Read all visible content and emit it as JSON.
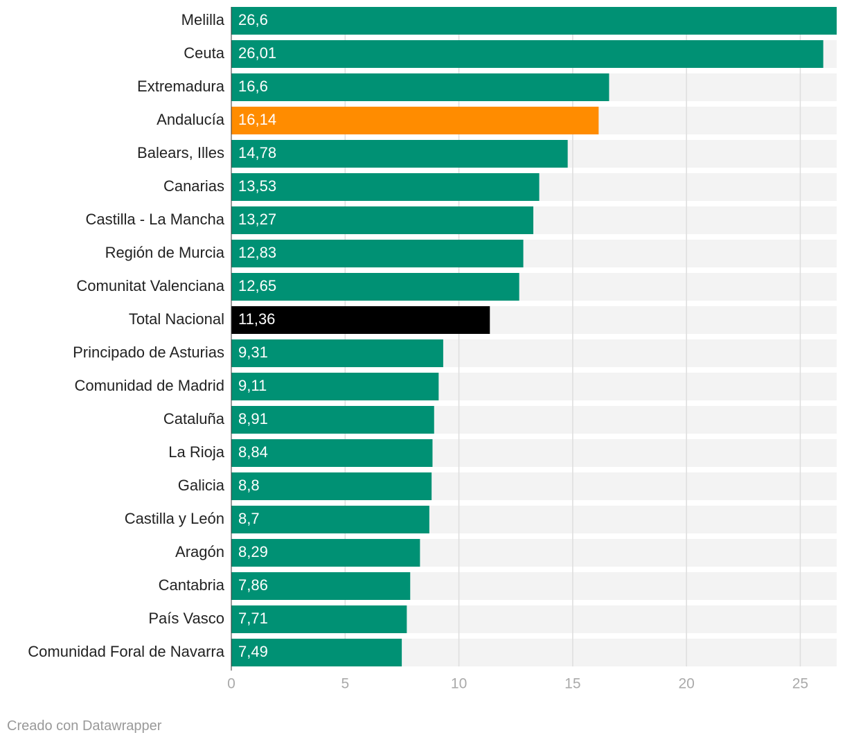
{
  "chart_data": {
    "type": "bar",
    "orientation": "horizontal",
    "categories": [
      "Melilla",
      "Ceuta",
      "Extremadura",
      "Andalucía",
      "Balears, Illes",
      "Canarias",
      "Castilla - La Mancha",
      "Región de Murcia",
      "Comunitat Valenciana",
      "Total Nacional",
      "Principado de Asturias",
      "Comunidad de Madrid",
      "Cataluña",
      "La Rioja",
      "Galicia",
      "Castilla y León",
      "Aragón",
      "Cantabria",
      "País Vasco",
      "Comunidad Foral de Navarra"
    ],
    "values": [
      26.6,
      26.01,
      16.6,
      16.14,
      14.78,
      13.53,
      13.27,
      12.83,
      12.65,
      11.36,
      9.31,
      9.11,
      8.91,
      8.84,
      8.8,
      8.7,
      8.29,
      7.86,
      7.71,
      7.49
    ],
    "value_labels": [
      "26,6",
      "26,01",
      "16,6",
      "16,14",
      "14,78",
      "13,53",
      "13,27",
      "12,83",
      "12,65",
      "11,36",
      "9,31",
      "9,11",
      "8,91",
      "8,84",
      "8,8",
      "8,7",
      "8,29",
      "7,86",
      "7,71",
      "7,49"
    ],
    "bar_colors": [
      "#009174",
      "#009174",
      "#009174",
      "#ff8c00",
      "#009174",
      "#009174",
      "#009174",
      "#009174",
      "#009174",
      "#000000",
      "#009174",
      "#009174",
      "#009174",
      "#009174",
      "#009174",
      "#009174",
      "#009174",
      "#009174",
      "#009174",
      "#009174"
    ],
    "xlim": [
      0,
      26.6
    ],
    "xticks": [
      0,
      5,
      10,
      15,
      20,
      25
    ],
    "xtick_labels": [
      "0",
      "5",
      "10",
      "15",
      "20",
      "25"
    ],
    "grid": true,
    "background_color": "#f3f3f3",
    "gridline_color": "#dddddd",
    "title": "",
    "xlabel": "",
    "ylabel": ""
  },
  "footer": {
    "credit": "Creado con Datawrapper"
  }
}
